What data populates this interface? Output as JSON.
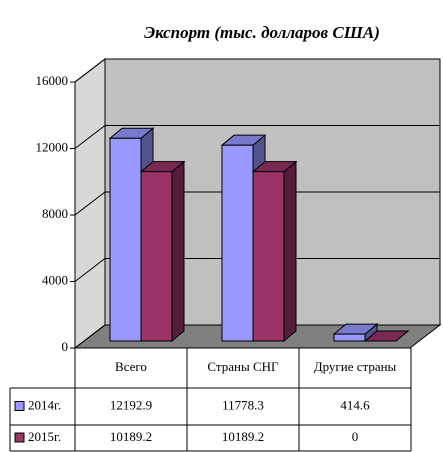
{
  "chart_data": {
    "type": "bar3d",
    "title": "Экспорт (тыс. долларов США)",
    "categories": [
      "Всего",
      "Страны СНГ",
      "Другие страны"
    ],
    "series": [
      {
        "name": "2014г.",
        "color": "#9999ff",
        "values": [
          12192.9,
          11778.3,
          414.6
        ]
      },
      {
        "name": "2015г.",
        "color": "#993366",
        "values": [
          10189.2,
          10189.2,
          0
        ]
      }
    ],
    "ylim": [
      0,
      16000
    ],
    "yticks": [
      0,
      4000,
      8000,
      12000,
      16000
    ],
    "grid": true
  }
}
